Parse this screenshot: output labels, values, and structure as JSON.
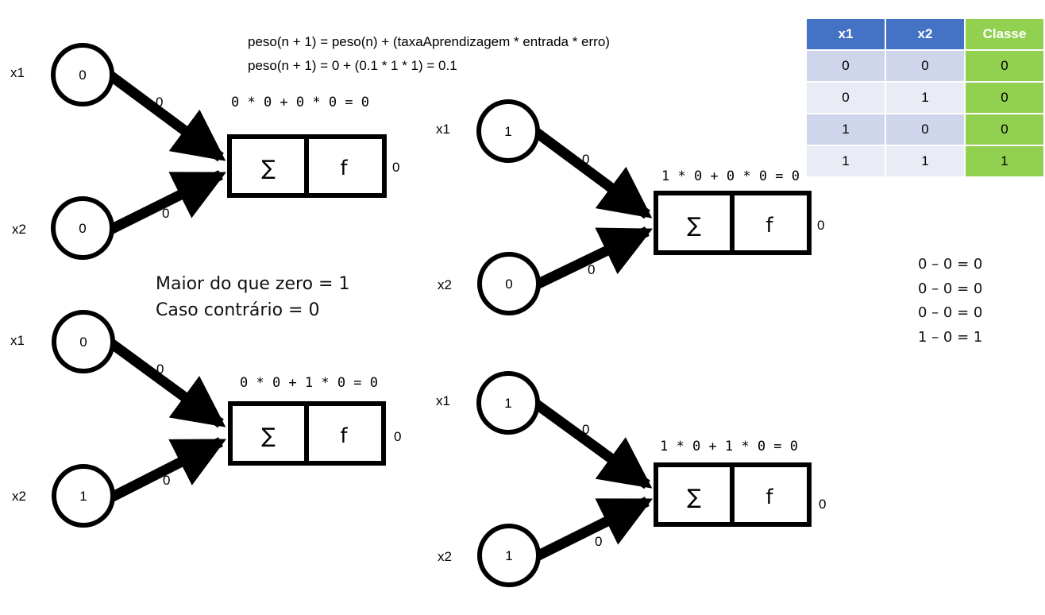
{
  "formula": {
    "line1": "peso(n + 1) = peso(n) + (taxaAprendizagem * entrada * erro)",
    "line2": "peso(n + 1) = 0 + (0.1 * 1 * 1) = 0.1"
  },
  "rule": {
    "line1": "Maior do que zero = 1",
    "line2": "Caso contrário = 0"
  },
  "differences": [
    "0 – 0 = 0",
    "0 – 0 = 0",
    "0 – 0 = 0",
    "1 – 0 = 1"
  ],
  "table": {
    "headers": [
      "x1",
      "x2",
      "Classe"
    ],
    "rows": [
      [
        "0",
        "0",
        "0"
      ],
      [
        "0",
        "1",
        "0"
      ],
      [
        "1",
        "0",
        "0"
      ],
      [
        "1",
        "1",
        "1"
      ]
    ]
  },
  "colors": {
    "header_blue": "#4472c4",
    "class_green": "#92d050",
    "row_dark": "#cfd5ea",
    "row_light": "#e9ebf5"
  },
  "perceptrons": [
    {
      "x1_label": "x1",
      "x2_label": "x2",
      "x1_value": "0",
      "x2_value": "0",
      "w1": "0",
      "w2": "0",
      "computation": "0 * 0 + 0 * 0 = 0",
      "sum_symbol": "∑",
      "func_symbol": "f",
      "output": "0"
    },
    {
      "x1_label": "x1",
      "x2_label": "x2",
      "x1_value": "1",
      "x2_value": "0",
      "w1": "0",
      "w2": "0",
      "computation": "1 * 0 + 0 * 0 = 0",
      "sum_symbol": "∑",
      "func_symbol": "f",
      "output": "0"
    },
    {
      "x1_label": "x1",
      "x2_label": "x2",
      "x1_value": "0",
      "x2_value": "1",
      "w1": "0",
      "w2": "0",
      "computation": "0 * 0 + 1 * 0 = 0",
      "sum_symbol": "∑",
      "func_symbol": "f",
      "output": "0"
    },
    {
      "x1_label": "x1",
      "x2_label": "x2",
      "x1_value": "1",
      "x2_value": "1",
      "w1": "0",
      "w2": "0",
      "computation": "1 * 0 + 1 * 0 = 0",
      "sum_symbol": "∑",
      "func_symbol": "f",
      "output": "0"
    }
  ]
}
